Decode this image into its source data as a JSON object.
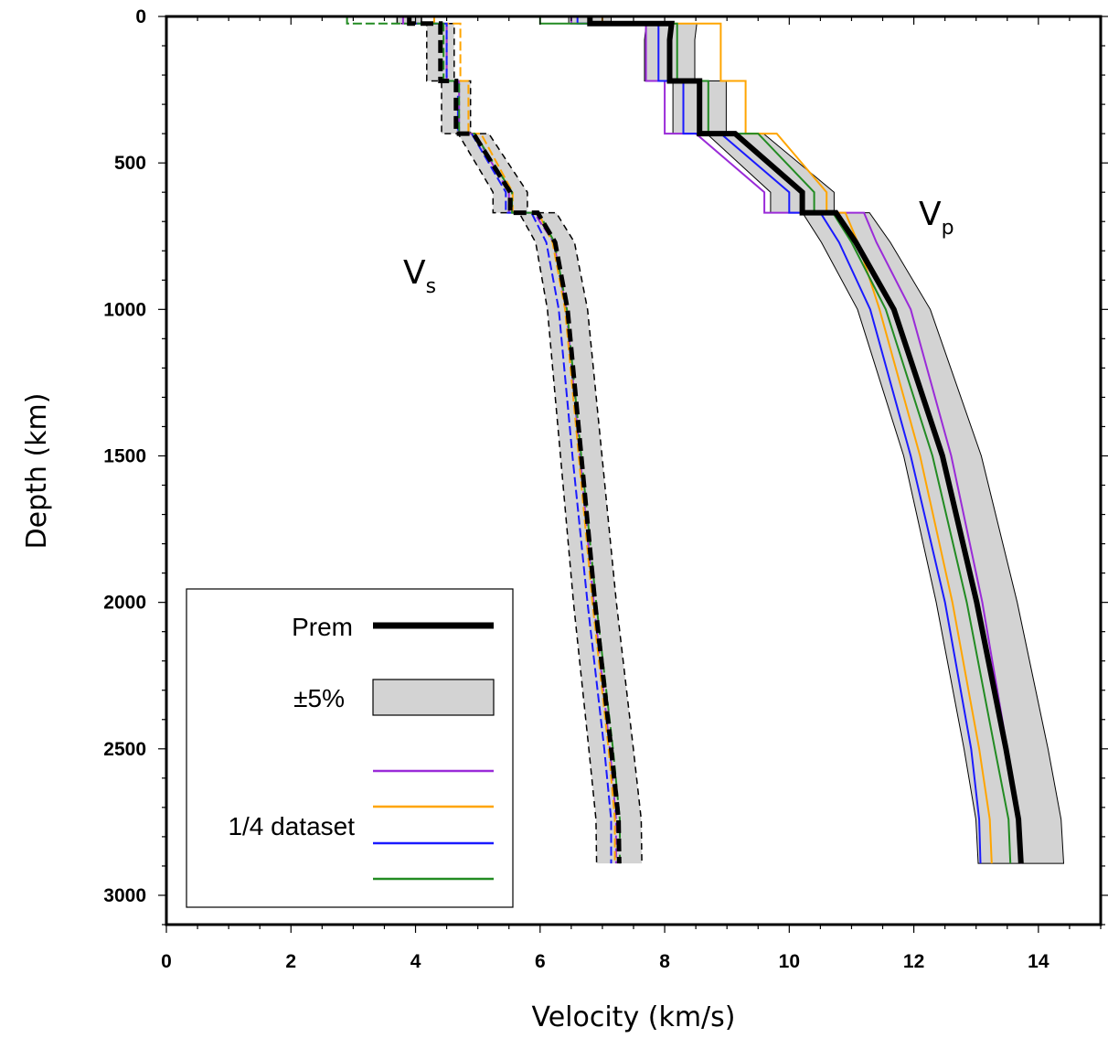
{
  "chart_data": {
    "type": "line",
    "xlabel": "Velocity (km/s)",
    "ylabel": "Depth (km)",
    "xlim": [
      0,
      15
    ],
    "ylim": [
      3100,
      0
    ],
    "x_ticks": [
      0,
      2,
      4,
      6,
      8,
      10,
      12,
      14
    ],
    "y_ticks": [
      0,
      500,
      1000,
      1500,
      2000,
      2500,
      3000
    ],
    "grid": false,
    "legend_position": "bottom-left",
    "legend": {
      "prem_label": "Prem",
      "band_label": "±5%",
      "dataset_label": "1/4 dataset"
    },
    "annotations": {
      "vs": {
        "main": "V",
        "sub": "s"
      },
      "vp": {
        "main": "V",
        "sub": "p"
      }
    },
    "colors": {
      "prem": "#000000",
      "band_fill": "#d3d3d3",
      "purple": "#9a2bd8",
      "orange": "#ffa500",
      "blue": "#1a1aff",
      "green": "#228b22"
    },
    "depths": [
      0,
      24,
      80,
      220,
      400,
      600,
      670,
      771,
      1000,
      1500,
      2000,
      2500,
      2741,
      2891
    ],
    "series": [
      {
        "name": "Prem",
        "group": "Vs",
        "values": [
          3.9,
          4.4,
          4.4,
          4.65,
          4.93,
          5.52,
          5.96,
          6.24,
          6.44,
          6.66,
          6.88,
          7.14,
          7.26,
          7.27
        ]
      },
      {
        "name": "",
        "group": "Vs",
        "color": "purple",
        "values": [
          3.8,
          4.5,
          4.5,
          4.7,
          4.95,
          5.5,
          5.9,
          6.22,
          6.42,
          6.64,
          6.86,
          7.12,
          7.22,
          7.22
        ]
      },
      {
        "name": "",
        "group": "Vs",
        "color": "orange",
        "values": [
          4.3,
          4.72,
          4.72,
          4.85,
          5.05,
          5.56,
          5.97,
          6.2,
          6.4,
          6.62,
          6.84,
          7.1,
          7.2,
          7.2
        ]
      },
      {
        "name": "",
        "group": "Vs",
        "color": "blue",
        "values": [
          3.9,
          4.5,
          4.5,
          4.68,
          4.9,
          5.45,
          5.86,
          6.1,
          6.3,
          6.52,
          6.76,
          7.03,
          7.14,
          7.14
        ]
      },
      {
        "name": "",
        "group": "Vs",
        "color": "green",
        "values": [
          2.9,
          4.45,
          4.45,
          4.7,
          4.95,
          5.55,
          5.98,
          6.23,
          6.43,
          6.66,
          6.9,
          7.17,
          7.28,
          7.28
        ]
      },
      {
        "name": "Prem",
        "group": "Vp",
        "values": [
          6.8,
          8.11,
          8.08,
          8.56,
          9.13,
          10.21,
          10.75,
          11.07,
          11.68,
          12.46,
          13.01,
          13.48,
          13.68,
          13.72
        ]
      },
      {
        "name": "",
        "group": "Vp",
        "color": "purple",
        "values": [
          6.5,
          7.7,
          7.7,
          8.0,
          8.5,
          9.6,
          11.2,
          11.4,
          11.95,
          12.6,
          13.1,
          13.5,
          13.7,
          13.72
        ]
      },
      {
        "name": "",
        "group": "Vp",
        "color": "orange",
        "values": [
          7.0,
          8.9,
          8.9,
          9.3,
          9.8,
          10.6,
          10.9,
          11.1,
          11.45,
          12.1,
          12.62,
          13.05,
          13.22,
          13.25
        ]
      },
      {
        "name": "",
        "group": "Vp",
        "color": "blue",
        "values": [
          6.6,
          7.9,
          7.9,
          8.3,
          8.9,
          10.0,
          10.5,
          10.8,
          11.3,
          11.95,
          12.5,
          12.92,
          13.05,
          13.07
        ]
      },
      {
        "name": "",
        "group": "Vp",
        "color": "green",
        "values": [
          6.0,
          8.2,
          8.2,
          8.7,
          9.5,
          10.4,
          10.7,
          11.0,
          11.55,
          12.3,
          12.85,
          13.3,
          13.52,
          13.55
        ]
      }
    ],
    "band_percent": 5
  }
}
